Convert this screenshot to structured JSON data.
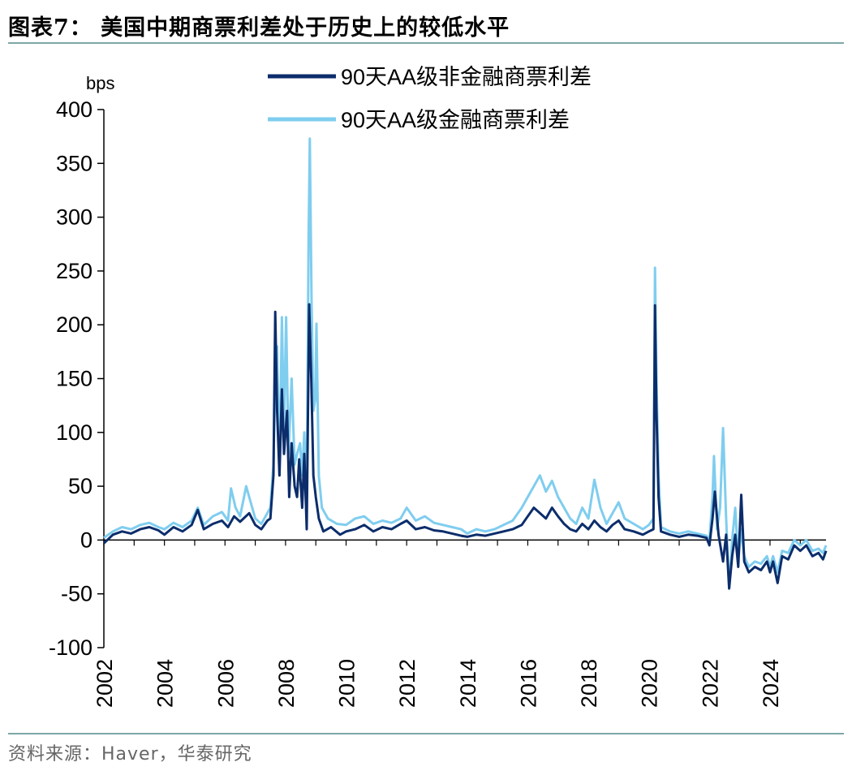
{
  "figure": {
    "title": "图表7：  美国中期商票利差处于历史上的较低水平",
    "source": "资料来源：Haver，华泰研究"
  },
  "colors": {
    "non_financial": "#0c2d6b",
    "financial": "#7fcdef",
    "rule": "#7da7a7"
  },
  "chart_data": {
    "type": "line",
    "title": "美国中期商票利差处于历史上的较低水平",
    "ylabel": "bps",
    "xlabel": "",
    "ylim": [
      -100,
      400
    ],
    "yticks": [
      -100,
      -50,
      0,
      50,
      100,
      150,
      200,
      250,
      300,
      350,
      400
    ],
    "xlim": [
      2002,
      2025.85
    ],
    "xticks": [
      "2002",
      "2004",
      "2006",
      "2008",
      "2010",
      "2012",
      "2014",
      "2016",
      "2018",
      "2020",
      "2022",
      "2024"
    ],
    "legend_position": "top-center",
    "series": [
      {
        "name": "90天AA级非金融商票利差",
        "points": [
          [
            2002.0,
            -3
          ],
          [
            2002.3,
            5
          ],
          [
            2002.6,
            8
          ],
          [
            2002.9,
            6
          ],
          [
            2003.2,
            10
          ],
          [
            2003.5,
            12
          ],
          [
            2003.8,
            9
          ],
          [
            2004.0,
            5
          ],
          [
            2004.3,
            12
          ],
          [
            2004.6,
            8
          ],
          [
            2004.9,
            14
          ],
          [
            2005.1,
            28
          ],
          [
            2005.3,
            10
          ],
          [
            2005.6,
            15
          ],
          [
            2005.9,
            18
          ],
          [
            2006.1,
            12
          ],
          [
            2006.3,
            22
          ],
          [
            2006.5,
            17
          ],
          [
            2006.8,
            25
          ],
          [
            2007.0,
            14
          ],
          [
            2007.2,
            10
          ],
          [
            2007.4,
            18
          ],
          [
            2007.5,
            20
          ],
          [
            2007.6,
            60
          ],
          [
            2007.66,
            212
          ],
          [
            2007.72,
            120
          ],
          [
            2007.8,
            60
          ],
          [
            2007.88,
            140
          ],
          [
            2007.95,
            80
          ],
          [
            2008.05,
            120
          ],
          [
            2008.12,
            40
          ],
          [
            2008.2,
            90
          ],
          [
            2008.3,
            50
          ],
          [
            2008.38,
            40
          ],
          [
            2008.45,
            75
          ],
          [
            2008.55,
            30
          ],
          [
            2008.62,
            80
          ],
          [
            2008.7,
            10
          ],
          [
            2008.78,
            219
          ],
          [
            2008.85,
            150
          ],
          [
            2008.92,
            60
          ],
          [
            2009.0,
            40
          ],
          [
            2009.1,
            20
          ],
          [
            2009.25,
            8
          ],
          [
            2009.5,
            12
          ],
          [
            2009.8,
            5
          ],
          [
            2010.0,
            8
          ],
          [
            2010.3,
            10
          ],
          [
            2010.6,
            14
          ],
          [
            2010.9,
            8
          ],
          [
            2011.2,
            12
          ],
          [
            2011.5,
            10
          ],
          [
            2011.8,
            15
          ],
          [
            2012.0,
            18
          ],
          [
            2012.3,
            10
          ],
          [
            2012.6,
            12
          ],
          [
            2012.9,
            9
          ],
          [
            2013.2,
            8
          ],
          [
            2013.5,
            6
          ],
          [
            2013.8,
            4
          ],
          [
            2014.0,
            3
          ],
          [
            2014.3,
            5
          ],
          [
            2014.6,
            4
          ],
          [
            2014.9,
            6
          ],
          [
            2015.2,
            8
          ],
          [
            2015.5,
            10
          ],
          [
            2015.8,
            14
          ],
          [
            2016.0,
            22
          ],
          [
            2016.2,
            30
          ],
          [
            2016.4,
            25
          ],
          [
            2016.6,
            20
          ],
          [
            2016.8,
            30
          ],
          [
            2017.0,
            22
          ],
          [
            2017.2,
            15
          ],
          [
            2017.4,
            10
          ],
          [
            2017.6,
            8
          ],
          [
            2017.8,
            15
          ],
          [
            2018.0,
            10
          ],
          [
            2018.2,
            18
          ],
          [
            2018.4,
            12
          ],
          [
            2018.6,
            8
          ],
          [
            2018.8,
            14
          ],
          [
            2019.0,
            18
          ],
          [
            2019.2,
            10
          ],
          [
            2019.5,
            8
          ],
          [
            2019.8,
            5
          ],
          [
            2020.0,
            8
          ],
          [
            2020.15,
            10
          ],
          [
            2020.2,
            218
          ],
          [
            2020.25,
            120
          ],
          [
            2020.32,
            40
          ],
          [
            2020.4,
            8
          ],
          [
            2020.7,
            5
          ],
          [
            2021.0,
            3
          ],
          [
            2021.3,
            5
          ],
          [
            2021.6,
            4
          ],
          [
            2021.9,
            2
          ],
          [
            2022.0,
            -5
          ],
          [
            2022.1,
            20
          ],
          [
            2022.18,
            45
          ],
          [
            2022.3,
            5
          ],
          [
            2022.45,
            -20
          ],
          [
            2022.55,
            5
          ],
          [
            2022.65,
            -45
          ],
          [
            2022.75,
            -15
          ],
          [
            2022.85,
            5
          ],
          [
            2022.95,
            -25
          ],
          [
            2023.05,
            42
          ],
          [
            2023.15,
            -20
          ],
          [
            2023.3,
            -30
          ],
          [
            2023.5,
            -25
          ],
          [
            2023.7,
            -28
          ],
          [
            2023.9,
            -20
          ],
          [
            2024.0,
            -30
          ],
          [
            2024.1,
            -20
          ],
          [
            2024.25,
            -40
          ],
          [
            2024.4,
            -15
          ],
          [
            2024.6,
            -18
          ],
          [
            2024.8,
            -5
          ],
          [
            2025.0,
            -10
          ],
          [
            2025.2,
            -5
          ],
          [
            2025.4,
            -15
          ],
          [
            2025.6,
            -12
          ],
          [
            2025.75,
            -18
          ],
          [
            2025.85,
            -10
          ]
        ]
      },
      {
        "name": "90天AA级金融商票利差",
        "points": [
          [
            2002.0,
            2
          ],
          [
            2002.3,
            8
          ],
          [
            2002.6,
            12
          ],
          [
            2002.9,
            10
          ],
          [
            2003.2,
            14
          ],
          [
            2003.5,
            16
          ],
          [
            2003.8,
            12
          ],
          [
            2004.0,
            10
          ],
          [
            2004.3,
            16
          ],
          [
            2004.6,
            12
          ],
          [
            2004.9,
            18
          ],
          [
            2005.1,
            30
          ],
          [
            2005.3,
            14
          ],
          [
            2005.6,
            22
          ],
          [
            2005.9,
            26
          ],
          [
            2006.1,
            18
          ],
          [
            2006.2,
            48
          ],
          [
            2006.35,
            30
          ],
          [
            2006.5,
            22
          ],
          [
            2006.7,
            50
          ],
          [
            2006.8,
            40
          ],
          [
            2007.0,
            20
          ],
          [
            2007.2,
            15
          ],
          [
            2007.4,
            25
          ],
          [
            2007.5,
            30
          ],
          [
            2007.6,
            70
          ],
          [
            2007.66,
            150
          ],
          [
            2007.72,
            180
          ],
          [
            2007.8,
            60
          ],
          [
            2007.88,
            207
          ],
          [
            2007.95,
            100
          ],
          [
            2008.02,
            207
          ],
          [
            2008.1,
            80
          ],
          [
            2008.2,
            150
          ],
          [
            2008.3,
            70
          ],
          [
            2008.38,
            80
          ],
          [
            2008.48,
            90
          ],
          [
            2008.55,
            60
          ],
          [
            2008.62,
            100
          ],
          [
            2008.7,
            40
          ],
          [
            2008.76,
            280
          ],
          [
            2008.8,
            373
          ],
          [
            2008.86,
            220
          ],
          [
            2008.92,
            120
          ],
          [
            2008.98,
            130
          ],
          [
            2009.02,
            201
          ],
          [
            2009.1,
            60
          ],
          [
            2009.2,
            30
          ],
          [
            2009.4,
            20
          ],
          [
            2009.7,
            15
          ],
          [
            2010.0,
            14
          ],
          [
            2010.3,
            20
          ],
          [
            2010.6,
            22
          ],
          [
            2010.9,
            15
          ],
          [
            2011.2,
            18
          ],
          [
            2011.5,
            16
          ],
          [
            2011.8,
            20
          ],
          [
            2012.0,
            30
          ],
          [
            2012.3,
            18
          ],
          [
            2012.6,
            22
          ],
          [
            2012.9,
            16
          ],
          [
            2013.2,
            14
          ],
          [
            2013.5,
            12
          ],
          [
            2013.8,
            10
          ],
          [
            2014.0,
            6
          ],
          [
            2014.3,
            10
          ],
          [
            2014.6,
            8
          ],
          [
            2014.9,
            10
          ],
          [
            2015.2,
            14
          ],
          [
            2015.5,
            18
          ],
          [
            2015.8,
            30
          ],
          [
            2016.0,
            40
          ],
          [
            2016.2,
            50
          ],
          [
            2016.4,
            60
          ],
          [
            2016.6,
            45
          ],
          [
            2016.8,
            55
          ],
          [
            2017.0,
            40
          ],
          [
            2017.2,
            30
          ],
          [
            2017.4,
            20
          ],
          [
            2017.6,
            15
          ],
          [
            2017.8,
            30
          ],
          [
            2018.0,
            20
          ],
          [
            2018.2,
            56
          ],
          [
            2018.4,
            30
          ],
          [
            2018.6,
            15
          ],
          [
            2018.8,
            25
          ],
          [
            2019.0,
            35
          ],
          [
            2019.2,
            20
          ],
          [
            2019.5,
            15
          ],
          [
            2019.8,
            10
          ],
          [
            2020.0,
            14
          ],
          [
            2020.15,
            20
          ],
          [
            2020.2,
            253
          ],
          [
            2020.25,
            150
          ],
          [
            2020.32,
            60
          ],
          [
            2020.4,
            12
          ],
          [
            2020.7,
            8
          ],
          [
            2021.0,
            6
          ],
          [
            2021.3,
            8
          ],
          [
            2021.6,
            6
          ],
          [
            2021.9,
            4
          ],
          [
            2022.0,
            0
          ],
          [
            2022.1,
            40
          ],
          [
            2022.15,
            78
          ],
          [
            2022.25,
            10
          ],
          [
            2022.35,
            30
          ],
          [
            2022.45,
            104
          ],
          [
            2022.55,
            20
          ],
          [
            2022.65,
            -45
          ],
          [
            2022.75,
            0
          ],
          [
            2022.85,
            30
          ],
          [
            2022.95,
            -20
          ],
          [
            2023.05,
            10
          ],
          [
            2023.15,
            -15
          ],
          [
            2023.3,
            -25
          ],
          [
            2023.5,
            -20
          ],
          [
            2023.7,
            -22
          ],
          [
            2023.9,
            -15
          ],
          [
            2024.0,
            -25
          ],
          [
            2024.1,
            -15
          ],
          [
            2024.25,
            -30
          ],
          [
            2024.4,
            -10
          ],
          [
            2024.6,
            -12
          ],
          [
            2024.8,
            0
          ],
          [
            2025.0,
            -5
          ],
          [
            2025.2,
            0
          ],
          [
            2025.4,
            -10
          ],
          [
            2025.6,
            -8
          ],
          [
            2025.75,
            -12
          ],
          [
            2025.85,
            -5
          ]
        ]
      }
    ]
  }
}
